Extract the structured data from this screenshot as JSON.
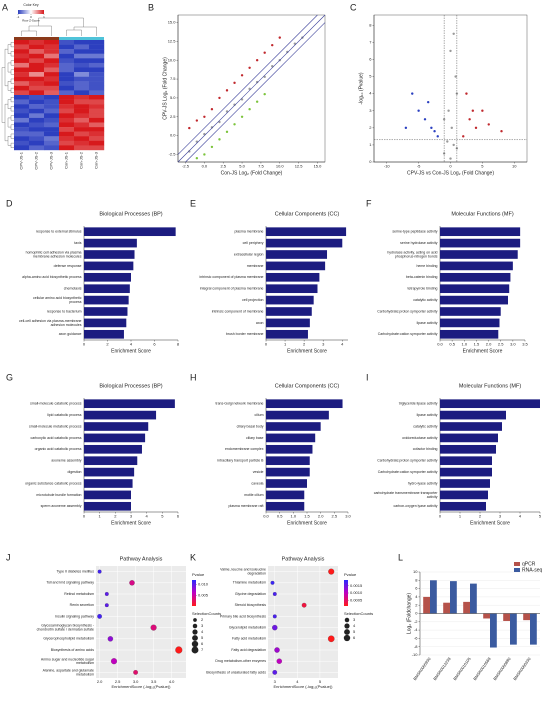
{
  "chart_data": [
    {
      "type": "heatmap",
      "label": "A",
      "colorkey": {
        "title": "Color Key",
        "label": "Row Z-Score",
        "ticks": [
          -1,
          0,
          1
        ],
        "colors": [
          "#2c3fbf",
          "#ffffff",
          "#d7191c"
        ]
      },
      "categories": [
        "CPV-JS-1",
        "CPV-JS-2",
        "CPV-JS-3",
        "Con-JS-1",
        "Con-JS-2",
        "Con-JS-3"
      ],
      "column_colors": [
        "#8b3a1a",
        "#8b3a1a",
        "#8b3a1a",
        "#4fc3d9",
        "#4fc3d9",
        "#4fc3d9"
      ],
      "values": [
        [
          1.1,
          0.9,
          1.0,
          -0.9,
          -1.1,
          -1.0
        ],
        [
          0.8,
          1.1,
          0.9,
          -1.0,
          -0.8,
          -1.0
        ],
        [
          1.2,
          0.7,
          0.9,
          -0.8,
          -1.0,
          -1.0
        ],
        [
          0.9,
          1.0,
          0.6,
          -1.1,
          -0.7,
          -0.7
        ],
        [
          1.0,
          0.8,
          1.1,
          -0.9,
          -1.0,
          -1.0
        ],
        [
          0.6,
          1.0,
          0.9,
          -0.8,
          -0.9,
          -0.8
        ],
        [
          1.1,
          1.0,
          0.7,
          -0.8,
          -1.0,
          -1.0
        ],
        [
          0.9,
          0.5,
          1.1,
          -1.0,
          -0.6,
          -0.9
        ],
        [
          1.0,
          1.0,
          0.9,
          -1.1,
          -0.9,
          -0.9
        ],
        [
          0.7,
          0.9,
          1.0,
          -0.9,
          -0.8,
          -0.9
        ],
        [
          1.1,
          0.8,
          0.8,
          -1.0,
          -0.8,
          -0.9
        ],
        [
          0.8,
          1.1,
          0.7,
          -0.8,
          -1.0,
          -0.8
        ],
        [
          -1.0,
          -0.9,
          -1.1,
          1.0,
          0.9,
          1.1
        ],
        [
          -0.8,
          -1.0,
          -0.9,
          1.1,
          0.8,
          0.8
        ],
        [
          -1.1,
          -0.8,
          -0.9,
          0.9,
          1.0,
          0.9
        ],
        [
          -0.9,
          -1.0,
          -0.8,
          0.8,
          1.1,
          0.8
        ],
        [
          -1.0,
          -0.7,
          -1.0,
          1.0,
          0.9,
          0.8
        ],
        [
          -0.7,
          -1.1,
          -0.9,
          0.9,
          0.7,
          1.1
        ],
        [
          -1.0,
          -0.9,
          -0.8,
          1.1,
          0.9,
          0.7
        ],
        [
          -0.9,
          -1.0,
          -1.0,
          0.8,
          1.0,
          1.1
        ],
        [
          -0.8,
          -0.8,
          -1.1,
          1.0,
          0.8,
          0.9
        ],
        [
          -1.1,
          -0.9,
          -0.7,
          0.9,
          1.0,
          0.8
        ],
        [
          -0.9,
          -1.1,
          -0.8,
          0.8,
          0.9,
          1.1
        ],
        [
          -1.0,
          -0.8,
          -0.9,
          1.1,
          0.8,
          0.8
        ]
      ]
    },
    {
      "type": "scatter",
      "label": "B",
      "xlabel": "Con-JS Log₂ (Fold Change)",
      "ylabel": "CPV-JS Log₂ (Fold Change)",
      "xlim": [
        -3.5,
        16
      ],
      "ylim": [
        -3.5,
        16
      ],
      "xticks": [
        -2.5,
        {
          "value": 0,
          "label": "0.0"
        },
        2.5,
        {
          "value": 5,
          "label": "5.0"
        },
        7.5,
        {
          "value": 10,
          "label": "10.0"
        },
        12.5,
        {
          "value": 15,
          "label": "15.0"
        }
      ],
      "yticks": [
        -2.5,
        {
          "value": 0,
          "label": "0.0"
        },
        2.5,
        {
          "value": 5,
          "label": "5.0"
        },
        7.5,
        {
          "value": 10,
          "label": "10.0"
        },
        12.5,
        {
          "value": 15,
          "label": "15.0"
        }
      ],
      "diagonals": [
        -1,
        0,
        1
      ],
      "diagonal_color": "#3a3f9a",
      "series": [
        {
          "color": "#9a9a9a",
          "x": [
            -2,
            -1,
            0,
            1,
            2,
            3,
            4,
            5,
            6,
            7,
            8,
            9,
            10,
            11,
            12,
            13
          ],
          "values": [
            -2.1,
            -0.8,
            0.2,
            1.1,
            1.8,
            3.2,
            4.1,
            4.8,
            6.2,
            7.1,
            7.8,
            9.2,
            10,
            11.1,
            12.2,
            13
          ]
        },
        {
          "color": "#c0282d",
          "x": [
            -2,
            -1,
            0,
            1,
            2,
            3,
            4,
            5,
            6,
            7,
            8,
            9,
            10
          ],
          "values": [
            1,
            2,
            2.5,
            3.5,
            5,
            6,
            7,
            8,
            9,
            10,
            11,
            12,
            13
          ]
        },
        {
          "color": "#7cc43c",
          "x": [
            -1,
            0,
            1,
            2,
            3,
            4,
            5,
            6,
            7,
            8
          ],
          "values": [
            -3,
            -2.5,
            -1.5,
            -0.5,
            0.5,
            1.5,
            2.5,
            3.5,
            4.5,
            5.5
          ]
        }
      ]
    },
    {
      "type": "scatter",
      "label": "C",
      "xlabel": "CPV-JS vs Con-JS  Log₂ (Fold Change)",
      "ylabel": "-log₁₀ (Pvalue)",
      "xlim": [
        -12,
        12
      ],
      "ylim": [
        0,
        8.6
      ],
      "xticks": [
        -10,
        -5,
        0,
        5,
        10
      ],
      "yticks": [
        0,
        1,
        2,
        3,
        4,
        5,
        6,
        7,
        8
      ],
      "thresholds": {
        "x": [
          -1,
          1
        ],
        "y": 1.3
      },
      "series": [
        {
          "color": "#9a9a9a",
          "x": [
            -1,
            0,
            0.5,
            -0.5,
            1,
            0.2,
            -0.3,
            0,
            0.5,
            1,
            -1,
            0.8
          ],
          "values": [
            0.5,
            0.2,
            1,
            1.2,
            0.8,
            2,
            3,
            6.5,
            7.5,
            4,
            2.5,
            5
          ]
        },
        {
          "color": "#2a3fc0",
          "x": [
            -2,
            -3,
            -4,
            -5,
            -6,
            -2.5,
            -3.5,
            -7
          ],
          "values": [
            1.5,
            2,
            2.5,
            3,
            4,
            1.8,
            3.5,
            2
          ]
        },
        {
          "color": "#c0282d",
          "x": [
            2,
            3,
            4,
            5,
            6,
            8,
            2.5,
            3.5
          ],
          "values": [
            1.5,
            2.5,
            2,
            3,
            2.2,
            1.8,
            4,
            3
          ]
        }
      ]
    },
    {
      "type": "hbar",
      "label": "D",
      "title": "Biological Processes (BP)",
      "xlabel": "Enrichment Score",
      "color": "#1c1c80",
      "categories": [
        "response to external stimulus",
        "taxis",
        "homophilic cell adhesion via plasma membrane adhesion molecules",
        "defense response",
        "alpha-amino acid biosynthetic process",
        "chemotaxis",
        "cellular amino acid biosynthetic process",
        "response to bacterium",
        "cell-cell adhesion via plasma-membrane adhesion molecules",
        "axon guidance"
      ],
      "values": [
        7.8,
        4.5,
        4.3,
        4.2,
        4.0,
        3.9,
        3.8,
        3.7,
        3.6,
        3.4
      ],
      "xlim": [
        0,
        8
      ],
      "xticks": [
        0,
        2,
        4,
        6,
        8
      ]
    },
    {
      "type": "hbar",
      "label": "E",
      "title": "Cellular Components (CC)",
      "xlabel": "Enrichment Score",
      "color": "#1c1c80",
      "categories": [
        "plasma membrane",
        "cell periphery",
        "extracellular region",
        "membrane",
        "intrinsic component of plasma membrane",
        "integral component of plasma membrane",
        "cell projection",
        "intrinsic component of membrane",
        "axon",
        "brush border membrane"
      ],
      "values": [
        4.2,
        4.0,
        3.2,
        3.1,
        2.8,
        2.7,
        2.5,
        2.4,
        2.3,
        2.2
      ],
      "xlim": [
        0,
        4.3
      ],
      "xticks": [
        0,
        1,
        2,
        3,
        4
      ]
    },
    {
      "type": "hbar",
      "label": "F",
      "title": "Molecular Functions (MF)",
      "xlabel": "Enrichment Score",
      "color": "#1c1c80",
      "categories": [
        "serine-type peptidase activity",
        "serine hydrolase activity",
        "hydrolase activity, acting on acid phosphorus-nitrogen bonds",
        "heme binding",
        "beta-catenin binding",
        "tetrapyrrole binding",
        "catalytic activity",
        "Carbohydrate:proton symporter activity",
        "lipase activity",
        "Carbohydrate:cation symporter activity"
      ],
      "values": [
        3.3,
        3.3,
        3.2,
        3.0,
        2.9,
        2.85,
        2.8,
        2.5,
        2.45,
        2.4
      ],
      "xlim": [
        0,
        3.5
      ],
      "xticks": [
        {
          "value": 0,
          "label": "0.0"
        },
        0.5,
        {
          "value": 1,
          "label": "1.0"
        },
        1.5,
        {
          "value": 2,
          "label": "2.0"
        },
        2.5,
        {
          "value": 3,
          "label": "3.0"
        },
        3.5
      ]
    },
    {
      "type": "hbar",
      "label": "G",
      "title": "Biological Processes (BP)",
      "xlabel": "Enrichment Score",
      "color": "#1c1c80",
      "categories": [
        "small-molecule catabolic process",
        "lipid catabolic process",
        "small-molecule metabolic process",
        "carboxylic acid catabolic process",
        "organic acid catabolic process",
        "axoneme assembly",
        "digestion",
        "organic substance catabolic process",
        "microtubule bundle formation",
        "sperm axoneme assembly"
      ],
      "values": [
        5.8,
        4.6,
        4.1,
        3.9,
        3.7,
        3.4,
        3.2,
        3.1,
        3.0,
        3.0
      ],
      "xlim": [
        0,
        6
      ],
      "xticks": [
        0,
        1,
        2,
        3,
        4,
        5,
        6
      ]
    },
    {
      "type": "hbar",
      "label": "H",
      "title": "Cellular Components (CC)",
      "xlabel": "Enrichment Score",
      "color": "#1c1c80",
      "categories": [
        "trans-Golgi network membrane",
        "cilium",
        "ciliary basal body",
        "ciliary base",
        "endomembrane complex",
        "intraciliary transport particle B",
        "vesicle",
        "caveola",
        "motile cilium",
        "plasma membrane raft"
      ],
      "values": [
        2.8,
        2.3,
        2.0,
        1.8,
        1.7,
        1.6,
        1.6,
        1.5,
        1.4,
        1.4
      ],
      "xlim": [
        0,
        3
      ],
      "xticks": [
        {
          "value": 0,
          "label": "0.0"
        },
        0.5,
        {
          "value": 1,
          "label": "1.0"
        },
        1.5,
        {
          "value": 2,
          "label": "2.0"
        },
        2.5,
        {
          "value": 3,
          "label": "3.0"
        }
      ]
    },
    {
      "type": "hbar",
      "label": "I",
      "title": "Molecular Functions (MF)",
      "xlabel": "Enrichment Score",
      "color": "#1c1c80",
      "categories": [
        "triglyceride lipase activity",
        "lipase activity",
        "catalytic activity",
        "oxidoreductase activity",
        "cofactor binding",
        "Carbohydrate:proton symporter activity",
        "Carbohydrate:cation symporter activity",
        "hydro-lyase activity",
        "carbohydrate transmembrane transporter activity",
        "carbon-oxygen lyase activity"
      ],
      "values": [
        5.0,
        3.3,
        3.1,
        2.9,
        2.8,
        2.6,
        2.6,
        2.5,
        2.4,
        2.3
      ],
      "xlim": [
        0,
        5
      ],
      "xticks": [
        0,
        1,
        2,
        3,
        4,
        5
      ]
    },
    {
      "type": "bubble",
      "label": "J",
      "title": "Pathway Analysis",
      "xlabel": "EnrichmentScore (-log₁₀(Pvalue))",
      "categories": [
        "Type II diabetes mellitus",
        "Toll and Imd signaling pathway",
        "Retinol metabolism",
        "Renin secretion",
        "Insulin signaling pathway",
        "Glycosaminoglycan biosynthesis - chondroitin sulfate / dermatan sulfate",
        "Glycerophospholipid metabolism",
        "Biosynthesis of amino acids",
        "Amino sugar and nucleotide sugar metabolism",
        "Alanine, aspartate and glutamate metabolism"
      ],
      "values": [
        2.0,
        2.9,
        2.2,
        2.2,
        2.0,
        3.5,
        2.3,
        4.2,
        2.4,
        3.0
      ],
      "sizes": [
        2,
        4,
        2,
        2,
        3,
        5,
        4,
        7,
        5,
        3
      ],
      "pvalues": [
        0.011,
        0.004,
        0.01,
        0.01,
        0.011,
        0.0035,
        0.008,
        0.0001,
        0.006,
        0.003
      ],
      "xlim": [
        1.9,
        4.4
      ],
      "xticks": [
        {
          "value": 2,
          "label": "2.0"
        },
        2.5,
        {
          "value": 3,
          "label": "3.0"
        },
        3.5,
        {
          "value": 4,
          "label": "4.0"
        }
      ],
      "color_legend": {
        "title": "Pvalue",
        "range": [
          0.0001,
          0.012
        ],
        "ticks": [
          0.005,
          {
            "value": 0.01,
            "label": "0.010"
          }
        ],
        "colors": [
          "#ff1a1a",
          "#c000c0",
          "#2a2aff"
        ]
      },
      "size_legend": {
        "title": "SelectionCounts",
        "ticks": [
          2,
          3,
          4,
          5,
          6,
          7
        ]
      }
    },
    {
      "type": "bubble",
      "label": "K",
      "title": "Pathway Analysis",
      "xlabel": "EnrichmentScore (-log₁₀(Pvalue))",
      "categories": [
        "Valine, leucine and isoleucine degradation",
        "Thiamine metabolism",
        "Glycine degradation",
        "Steroid biosynthesis",
        "Primary bile acid biosynthesis",
        "Glycerolipid metabolism",
        "Fatty acid metabolism",
        "Fatty acid degradation",
        "Drug metabolism-other enzymes",
        "Biosynthesis of unsaturated fatty acids"
      ],
      "values": [
        5.5,
        2.9,
        3.0,
        4.3,
        3.0,
        3.0,
        5.5,
        3.1,
        3.2,
        3.0
      ],
      "sizes": [
        5,
        2,
        2,
        3,
        2,
        4,
        6,
        4,
        4,
        3
      ],
      "pvalues": [
        0.0001,
        0.0018,
        0.0017,
        0.0003,
        0.0017,
        0.0015,
        0.0001,
        0.0012,
        0.001,
        0.0016
      ],
      "xlim": [
        2.7,
        5.8
      ],
      "xticks": [
        3,
        4,
        5
      ],
      "color_legend": {
        "title": "Pvalue",
        "range": [
          0.0001,
          0.0019
        ],
        "ticks": [
          0.0005,
          {
            "value": 0.001,
            "label": "0.0010"
          },
          0.0015
        ],
        "colors": [
          "#ff1a1a",
          "#c000c0",
          "#2a2aff"
        ]
      },
      "size_legend": {
        "title": "SelectionCounts",
        "ticks": [
          3,
          4,
          5,
          6
        ]
      }
    },
    {
      "type": "groupedbar",
      "label": "L",
      "ylabel": "Log₂ (Foldchange)",
      "categories": [
        "BMSK0005930",
        "BMSK0012238",
        "BMSK0010105",
        "BMSK0010568",
        "BMSK0000880",
        "BMSK0000330"
      ],
      "series": [
        {
          "name": "qPCR",
          "color": "#b5524a",
          "values": [
            4,
            2.6,
            2.8,
            -1.2,
            -1.8,
            -1.6
          ]
        },
        {
          "name": "RNA-seq",
          "color": "#3b5ba0",
          "values": [
            8,
            7.8,
            7.2,
            -8.2,
            -7.5,
            -7.5
          ]
        }
      ],
      "ylim": [
        -10,
        10
      ],
      "yticks": [
        -10,
        -8,
        -6,
        -4,
        -2,
        0,
        2,
        4,
        6,
        8,
        10
      ],
      "legend": "upper right"
    }
  ]
}
